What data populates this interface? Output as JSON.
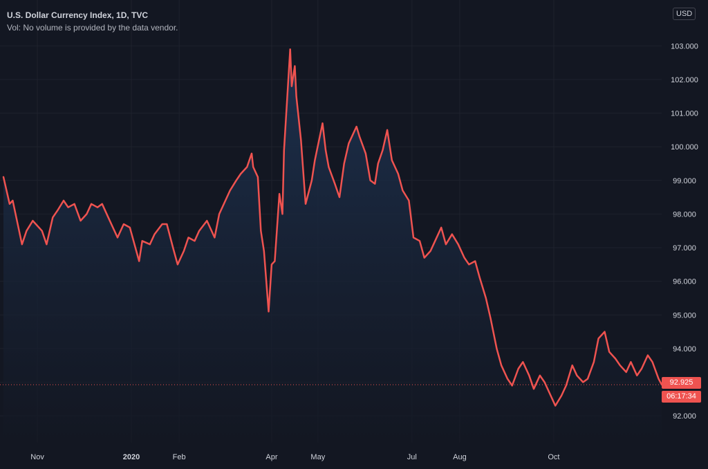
{
  "header": {
    "title": "U.S. Dollar Currency Index, 1D, TVC",
    "vol_note": "Vol: No volume is provided by the data vendor."
  },
  "currency": "USD",
  "last_price": "92.925",
  "countdown": "06:17:34",
  "colors": {
    "background": "#131722",
    "line": "#ef5350",
    "area_top": "#1e3352",
    "area_bottom": "#131722",
    "grid": "#1e222d",
    "text": "#d1d4dc"
  },
  "chart_data": {
    "type": "area",
    "title": "U.S. Dollar Currency Index, 1D, TVC",
    "xlabel": "",
    "ylabel": "",
    "x_ticks": [
      {
        "label": "Nov",
        "date": "2019-11-01"
      },
      {
        "label": "2020",
        "date": "2020-01-01"
      },
      {
        "label": "Feb",
        "date": "2020-02-01"
      },
      {
        "label": "Apr",
        "date": "2020-04-01"
      },
      {
        "label": "May",
        "date": "2020-05-01"
      },
      {
        "label": "Jul",
        "date": "2020-07-01"
      },
      {
        "label": "Aug",
        "date": "2020-08-01"
      },
      {
        "label": "Oct",
        "date": "2020-10-01"
      }
    ],
    "y_ticks": [
      "92.000",
      "93.000",
      "94.000",
      "95.000",
      "96.000",
      "97.000",
      "98.000",
      "99.000",
      "100.000",
      "101.000",
      "102.000",
      "103.000"
    ],
    "ylim": [
      91.2,
      104.2
    ],
    "grid": true,
    "last_value": 92.925,
    "series": [
      {
        "points": [
          [
            "2019-10-10",
            99.1
          ],
          [
            "2019-10-14",
            98.3
          ],
          [
            "2019-10-16",
            98.4
          ],
          [
            "2019-10-22",
            97.1
          ],
          [
            "2019-10-25",
            97.5
          ],
          [
            "2019-10-29",
            97.8
          ],
          [
            "2019-11-04",
            97.5
          ],
          [
            "2019-11-07",
            97.1
          ],
          [
            "2019-11-11",
            97.9
          ],
          [
            "2019-11-14",
            98.1
          ],
          [
            "2019-11-18",
            98.4
          ],
          [
            "2019-11-21",
            98.2
          ],
          [
            "2019-11-25",
            98.3
          ],
          [
            "2019-11-29",
            97.8
          ],
          [
            "2019-12-03",
            98.0
          ],
          [
            "2019-12-06",
            98.3
          ],
          [
            "2019-12-10",
            98.2
          ],
          [
            "2019-12-13",
            98.3
          ],
          [
            "2019-12-17",
            97.9
          ],
          [
            "2019-12-20",
            97.6
          ],
          [
            "2019-12-23",
            97.3
          ],
          [
            "2019-12-27",
            97.7
          ],
          [
            "2019-12-31",
            97.6
          ],
          [
            "2020-01-06",
            96.6
          ],
          [
            "2020-01-08",
            97.2
          ],
          [
            "2020-01-13",
            97.1
          ],
          [
            "2020-01-16",
            97.4
          ],
          [
            "2020-01-21",
            97.7
          ],
          [
            "2020-01-24",
            97.7
          ],
          [
            "2020-01-28",
            97.0
          ],
          [
            "2020-01-31",
            96.5
          ],
          [
            "2020-02-04",
            96.9
          ],
          [
            "2020-02-07",
            97.3
          ],
          [
            "2020-02-11",
            97.2
          ],
          [
            "2020-02-14",
            97.5
          ],
          [
            "2020-02-19",
            97.8
          ],
          [
            "2020-02-24",
            97.3
          ],
          [
            "2020-02-27",
            98.0
          ],
          [
            "2020-03-02",
            98.4
          ],
          [
            "2020-03-05",
            98.7
          ],
          [
            "2020-03-09",
            99.0
          ],
          [
            "2020-03-12",
            99.2
          ],
          [
            "2020-03-16",
            99.4
          ],
          [
            "2020-03-19",
            99.8
          ],
          [
            "2020-03-20",
            99.4
          ],
          [
            "2020-03-23",
            99.1
          ],
          [
            "2020-03-25",
            97.5
          ],
          [
            "2020-03-27",
            96.9
          ],
          [
            "2020-03-30",
            95.1
          ],
          [
            "2020-04-01",
            96.5
          ],
          [
            "2020-04-03",
            96.6
          ],
          [
            "2020-04-06",
            98.6
          ],
          [
            "2020-04-08",
            98.0
          ],
          [
            "2020-04-09",
            99.9
          ],
          [
            "2020-04-13",
            102.9
          ],
          [
            "2020-04-14",
            101.8
          ],
          [
            "2020-04-16",
            102.4
          ],
          [
            "2020-04-17",
            101.5
          ],
          [
            "2020-04-20",
            100.2
          ],
          [
            "2020-04-23",
            98.3
          ],
          [
            "2020-04-27",
            99.0
          ],
          [
            "2020-04-29",
            99.6
          ],
          [
            "2020-05-04",
            100.7
          ],
          [
            "2020-05-06",
            99.9
          ],
          [
            "2020-05-08",
            99.4
          ],
          [
            "2020-05-12",
            98.9
          ],
          [
            "2020-05-15",
            98.5
          ],
          [
            "2020-05-18",
            99.5
          ],
          [
            "2020-05-21",
            100.1
          ],
          [
            "2020-05-26",
            100.6
          ],
          [
            "2020-05-28",
            100.3
          ],
          [
            "2020-06-01",
            99.8
          ],
          [
            "2020-06-04",
            99.0
          ],
          [
            "2020-06-07",
            98.9
          ],
          [
            "2020-06-09",
            99.5
          ],
          [
            "2020-06-12",
            99.9
          ],
          [
            "2020-06-15",
            100.5
          ],
          [
            "2020-06-18",
            99.6
          ],
          [
            "2020-06-22",
            99.2
          ],
          [
            "2020-06-25",
            98.7
          ],
          [
            "2020-06-29",
            98.4
          ],
          [
            "2020-07-02",
            97.3
          ],
          [
            "2020-07-06",
            97.2
          ],
          [
            "2020-07-09",
            96.7
          ],
          [
            "2020-07-13",
            96.9
          ],
          [
            "2020-07-16",
            97.2
          ],
          [
            "2020-07-20",
            97.6
          ],
          [
            "2020-07-23",
            97.1
          ],
          [
            "2020-07-27",
            97.4
          ],
          [
            "2020-07-31",
            97.1
          ],
          [
            "2020-08-04",
            96.7
          ],
          [
            "2020-08-07",
            96.5
          ],
          [
            "2020-08-11",
            96.6
          ],
          [
            "2020-08-14",
            96.1
          ],
          [
            "2020-08-18",
            95.5
          ],
          [
            "2020-08-21",
            94.9
          ],
          [
            "2020-08-25",
            94.0
          ],
          [
            "2020-08-28",
            93.5
          ],
          [
            "2020-09-01",
            93.1
          ],
          [
            "2020-09-04",
            92.9
          ],
          [
            "2020-09-08",
            93.4
          ],
          [
            "2020-09-11",
            93.6
          ],
          [
            "2020-09-15",
            93.2
          ],
          [
            "2020-09-18",
            92.8
          ],
          [
            "2020-09-22",
            93.2
          ],
          [
            "2020-09-25",
            93.0
          ],
          [
            "2020-09-29",
            92.6
          ],
          [
            "2020-10-02",
            92.3
          ],
          [
            "2020-10-06",
            92.6
          ],
          [
            "2020-10-09",
            92.9
          ],
          [
            "2020-10-13",
            93.5
          ],
          [
            "2020-10-16",
            93.2
          ],
          [
            "2020-10-20",
            93.0
          ],
          [
            "2020-10-23",
            93.1
          ],
          [
            "2020-10-27",
            93.6
          ],
          [
            "2020-10-30",
            94.3
          ],
          [
            "2020-11-03",
            94.5
          ],
          [
            "2020-11-06",
            93.9
          ],
          [
            "2020-11-10",
            93.7
          ],
          [
            "2020-11-13",
            93.5
          ],
          [
            "2020-11-17",
            93.3
          ],
          [
            "2020-11-20",
            93.6
          ],
          [
            "2020-11-24",
            93.2
          ],
          [
            "2020-11-27",
            93.4
          ],
          [
            "2020-12-01",
            93.8
          ],
          [
            "2020-12-04",
            93.6
          ],
          [
            "2020-12-08",
            93.1
          ],
          [
            "2020-12-10",
            92.925
          ]
        ]
      }
    ]
  }
}
